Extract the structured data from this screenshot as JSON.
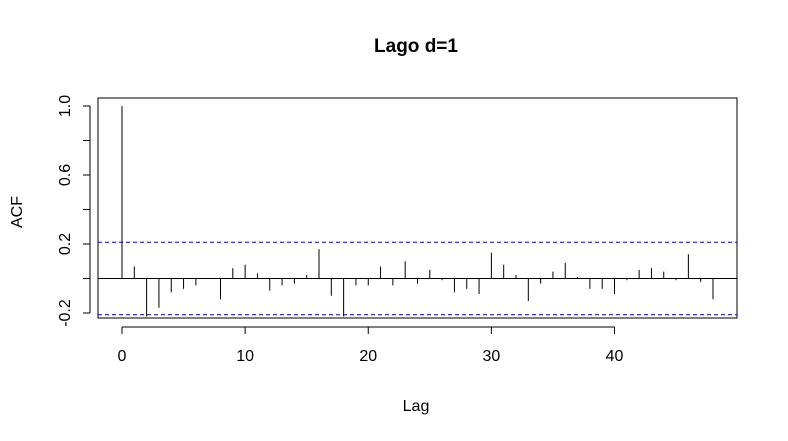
{
  "chart_data": {
    "type": "bar",
    "title": "Lago d=1",
    "xlabel": "Lag",
    "ylabel": "ACF",
    "xlim": [
      0,
      48
    ],
    "ylim": [
      -0.2,
      1.0
    ],
    "x_ticks": [
      0,
      10,
      20,
      30,
      40
    ],
    "x_tick_labels": [
      "0",
      "10",
      "20",
      "30",
      "40"
    ],
    "y_ticks": [
      -0.2,
      0.2,
      0.6,
      1.0
    ],
    "y_tick_labels": [
      "-0.2",
      "0.2",
      "0.6",
      "1.0"
    ],
    "y_minor_ticks": [
      0.0,
      0.4,
      0.8
    ],
    "grid": false,
    "confidence_bound": 0.21,
    "colors": {
      "bars": "#000000",
      "zero_line": "#000000",
      "confidence_lines": "#0000cd"
    },
    "x": [
      0,
      1,
      2,
      3,
      4,
      5,
      6,
      7,
      8,
      9,
      10,
      11,
      12,
      13,
      14,
      15,
      16,
      17,
      18,
      19,
      20,
      21,
      22,
      23,
      24,
      25,
      26,
      27,
      28,
      29,
      30,
      31,
      32,
      33,
      34,
      35,
      36,
      37,
      38,
      39,
      40,
      41,
      42,
      43,
      44,
      45,
      46,
      47,
      48
    ],
    "values": [
      1.0,
      0.07,
      -0.22,
      -0.17,
      -0.08,
      -0.06,
      -0.04,
      0.0,
      -0.12,
      0.06,
      0.08,
      0.03,
      -0.07,
      -0.04,
      -0.03,
      0.02,
      0.17,
      -0.1,
      -0.22,
      -0.04,
      -0.04,
      0.07,
      -0.04,
      0.1,
      -0.03,
      0.05,
      -0.01,
      -0.08,
      -0.06,
      -0.09,
      0.15,
      0.08,
      0.02,
      -0.13,
      -0.03,
      0.04,
      0.09,
      0.01,
      -0.06,
      -0.06,
      -0.09,
      -0.01,
      0.05,
      0.06,
      0.04,
      -0.01,
      0.14,
      -0.02,
      -0.12
    ]
  }
}
